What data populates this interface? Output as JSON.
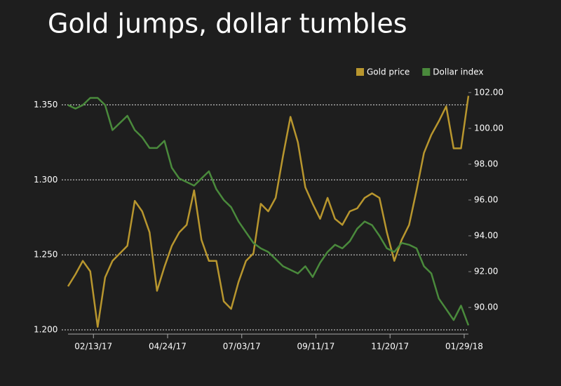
{
  "chart_data": {
    "type": "line",
    "title": "Gold jumps, dollar tumbles",
    "x": [
      "2017-01-20",
      "2017-01-27",
      "2017-02-03",
      "2017-02-10",
      "2017-02-17",
      "2017-02-24",
      "2017-03-03",
      "2017-03-10",
      "2017-03-17",
      "2017-03-24",
      "2017-03-31",
      "2017-04-07",
      "2017-04-14",
      "2017-04-21",
      "2017-04-28",
      "2017-05-05",
      "2017-05-12",
      "2017-05-19",
      "2017-05-26",
      "2017-06-02",
      "2017-06-09",
      "2017-06-16",
      "2017-06-23",
      "2017-06-30",
      "2017-07-07",
      "2017-07-14",
      "2017-07-21",
      "2017-07-28",
      "2017-08-04",
      "2017-08-11",
      "2017-08-18",
      "2017-08-25",
      "2017-09-01",
      "2017-09-08",
      "2017-09-15",
      "2017-09-22",
      "2017-09-29",
      "2017-10-06",
      "2017-10-13",
      "2017-10-20",
      "2017-10-27",
      "2017-11-03",
      "2017-11-10",
      "2017-11-17",
      "2017-11-24",
      "2017-12-01",
      "2017-12-08",
      "2017-12-15",
      "2017-12-22",
      "2017-12-29",
      "2018-01-05",
      "2018-01-12",
      "2018-01-19",
      "2018-01-26",
      "2018-02-02"
    ],
    "xlim": [
      "2017-01-20",
      "2018-02-02"
    ],
    "xticks": [
      {
        "value": "2017-02-13",
        "label": "02/13/17"
      },
      {
        "value": "2017-04-24",
        "label": "04/24/17"
      },
      {
        "value": "2017-07-03",
        "label": "07/03/17"
      },
      {
        "value": "2017-09-11",
        "label": "09/11/17"
      },
      {
        "value": "2017-11-20",
        "label": "11/20/17"
      },
      {
        "value": "2018-01-29",
        "label": "01/29/18"
      }
    ],
    "ylim": [
      1.2,
      1.36
    ],
    "yticks": [
      {
        "value": 1.2,
        "label": "1.200"
      },
      {
        "value": 1.25,
        "label": "1.250"
      },
      {
        "value": 1.3,
        "label": "1.300"
      },
      {
        "value": 1.35,
        "label": "1.350"
      }
    ],
    "y2lim": [
      88.75,
      102.15
    ],
    "y2ticks": [
      {
        "value": 90,
        "label": "90.00"
      },
      {
        "value": 92,
        "label": "92.00"
      },
      {
        "value": 94,
        "label": "94.00"
      },
      {
        "value": 96,
        "label": "96.00"
      },
      {
        "value": 98,
        "label": "98.00"
      },
      {
        "value": 100,
        "label": "100.00"
      },
      {
        "value": 102,
        "label": "102.00"
      }
    ],
    "grid": true,
    "series": [
      {
        "name": "Gold price",
        "color": "#b8962e",
        "values": [
          1.229,
          1.237,
          1.246,
          1.239,
          1.202,
          1.235,
          1.246,
          1.251,
          1.256,
          1.286,
          1.279,
          1.265,
          1.226,
          1.242,
          1.256,
          1.265,
          1.27,
          1.293,
          1.26,
          1.246,
          1.246,
          1.219,
          1.214,
          1.232,
          1.246,
          1.251,
          1.284,
          1.279,
          1.288,
          1.316,
          1.342,
          1.325,
          1.295,
          1.284,
          1.274,
          1.288,
          1.274,
          1.27,
          1.279,
          1.281,
          1.288,
          1.291,
          1.288,
          1.265,
          1.246,
          1.26,
          1.27,
          1.293,
          1.318,
          1.33,
          1.339,
          1.349,
          1.321,
          1.321,
          1.356
        ]
      },
      {
        "name": "Dollar index",
        "color": "#4a8a3c",
        "axis": "y2",
        "values": [
          101.3,
          101.1,
          101.3,
          101.7,
          101.7,
          101.3,
          99.9,
          100.3,
          100.7,
          99.9,
          99.5,
          98.9,
          98.9,
          99.3,
          97.8,
          97.2,
          97.0,
          96.8,
          97.2,
          97.6,
          96.6,
          96.0,
          95.6,
          94.8,
          94.2,
          93.6,
          93.3,
          93.1,
          92.7,
          92.3,
          92.1,
          91.9,
          92.3,
          91.7,
          92.5,
          93.1,
          93.5,
          93.3,
          93.7,
          94.4,
          94.8,
          94.6,
          94.0,
          93.3,
          93.1,
          93.6,
          93.5,
          93.3,
          92.3,
          91.9,
          90.5,
          89.9,
          89.3,
          90.1,
          89.0
        ]
      }
    ]
  }
}
